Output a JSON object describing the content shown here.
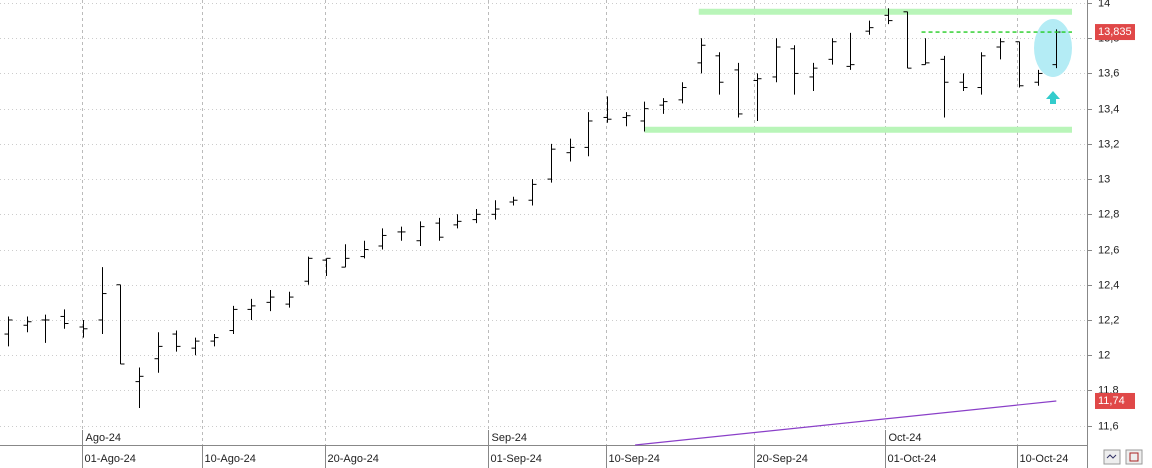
{
  "chart_data": {
    "type": "ohlc",
    "color": "#000000",
    "open": [
      12.12,
      12.17,
      12.2,
      12.22,
      12.16,
      12.2,
      12.4,
      11.85,
      11.98,
      12.12,
      12.04,
      12.08,
      12.14,
      12.26,
      12.3,
      12.29,
      12.42,
      12.54,
      12.5,
      12.56,
      12.62,
      12.7,
      12.65,
      12.75,
      12.74,
      12.77,
      12.8,
      12.87,
      12.88,
      13.0,
      13.15,
      13.18,
      13.35,
      13.35,
      13.33,
      13.42,
      13.45,
      13.66,
      13.7,
      13.62,
      13.56,
      13.58,
      13.74,
      13.58,
      13.68,
      13.64,
      13.84,
      13.93,
      13.95,
      13.65,
      13.68,
      13.55,
      13.52,
      13.75,
      13.78,
      13.55,
      13.65
    ],
    "high": [
      12.22,
      12.22,
      12.23,
      12.26,
      12.2,
      12.5,
      12.4,
      11.93,
      12.13,
      12.14,
      12.1,
      12.12,
      12.28,
      12.32,
      12.37,
      12.36,
      12.56,
      12.55,
      12.63,
      12.65,
      12.72,
      12.73,
      12.76,
      12.78,
      12.8,
      12.83,
      12.88,
      12.9,
      13.0,
      13.2,
      13.23,
      13.38,
      13.47,
      13.38,
      13.44,
      13.46,
      13.55,
      13.8,
      13.72,
      13.66,
      13.6,
      13.8,
      13.76,
      13.66,
      13.8,
      13.83,
      13.9,
      13.97,
      13.95,
      13.8,
      13.7,
      13.6,
      13.72,
      13.8,
      13.78,
      13.62,
      13.85
    ],
    "low": [
      12.05,
      12.13,
      12.07,
      12.15,
      12.1,
      12.12,
      11.95,
      11.7,
      11.9,
      12.02,
      12.0,
      12.05,
      12.12,
      12.2,
      12.25,
      12.27,
      12.4,
      12.45,
      12.5,
      12.55,
      12.6,
      12.65,
      12.62,
      12.65,
      12.72,
      12.75,
      12.77,
      12.85,
      12.85,
      12.98,
      13.1,
      13.13,
      13.32,
      13.3,
      13.27,
      13.37,
      13.43,
      13.6,
      13.48,
      13.35,
      13.33,
      13.55,
      13.48,
      13.5,
      13.65,
      13.62,
      13.82,
      13.88,
      13.63,
      13.65,
      13.35,
      13.5,
      13.48,
      13.68,
      13.52,
      13.53,
      13.63
    ],
    "close": [
      12.2,
      12.19,
      12.2,
      12.18,
      12.15,
      12.35,
      11.95,
      11.88,
      12.05,
      12.05,
      12.08,
      12.1,
      12.26,
      12.28,
      12.33,
      12.33,
      12.55,
      12.55,
      12.55,
      12.6,
      12.68,
      12.7,
      12.73,
      12.67,
      12.76,
      12.8,
      12.83,
      12.88,
      12.97,
      13.17,
      13.18,
      13.33,
      13.34,
      13.36,
      13.4,
      13.44,
      13.52,
      13.76,
      13.55,
      13.37,
      13.57,
      13.75,
      13.6,
      13.63,
      13.78,
      13.65,
      13.86,
      13.9,
      13.63,
      13.66,
      13.55,
      13.52,
      13.7,
      13.78,
      13.53,
      13.6,
      13.835
    ],
    "ylim": [
      11.49,
      14.017
    ],
    "yticks": [
      {
        "value": 11.6,
        "label": "11,6"
      },
      {
        "value": 11.8,
        "label": "11,8"
      },
      {
        "value": 12,
        "label": "12"
      },
      {
        "value": 12.2,
        "label": "12,2"
      },
      {
        "value": 12.4,
        "label": "12,4"
      },
      {
        "value": 12.6,
        "label": "12,6"
      },
      {
        "value": 12.8,
        "label": "12,8"
      },
      {
        "value": 13,
        "label": "13"
      },
      {
        "value": 13.2,
        "label": "13,2"
      },
      {
        "value": 13.4,
        "label": "13,4"
      },
      {
        "value": 13.6,
        "label": "13,6"
      },
      {
        "value": 13.8,
        "label": "13,8"
      },
      {
        "value": 14,
        "label": "14"
      }
    ],
    "xticks": [
      {
        "value": 3.95,
        "label": "01-Ago-24"
      },
      {
        "value": 10.36,
        "label": "10-Ago-24"
      },
      {
        "value": 16.93,
        "label": "20-Ago-24"
      },
      {
        "value": 25.64,
        "label": "01-Sep-24"
      },
      {
        "value": 31.94,
        "label": "10-Sep-24"
      },
      {
        "value": 39.85,
        "label": "20-Sep-24"
      },
      {
        "value": 46.85,
        "label": "01-Oct-24"
      },
      {
        "value": 53.9,
        "label": "10-Oct-24"
      }
    ],
    "period_ticks": [
      {
        "value": 3.95,
        "label": "Ago-24"
      },
      {
        "value": 25.64,
        "label": "Sep-24"
      },
      {
        "value": 46.85,
        "label": "Oct-24"
      }
    ],
    "grid": true,
    "levels": [
      {
        "value": 13.95,
        "x": [
          36.9,
          57
        ],
        "color": "#b9f5b9"
      },
      {
        "value": 13.28,
        "x": [
          34,
          57
        ],
        "color": "#b9f5b9"
      }
    ],
    "last_price": {
      "value": 13.835,
      "label": "13,835",
      "x": [
        48.8,
        57
      ],
      "color": "#22cc22",
      "badge": "#e04848"
    },
    "trend_line": {
      "x": [
        33.5,
        56
      ],
      "y": [
        11.49,
        11.74
      ],
      "label": "11,74",
      "color": "#8a3fc8",
      "badge": "#e04848"
    }
  }
}
